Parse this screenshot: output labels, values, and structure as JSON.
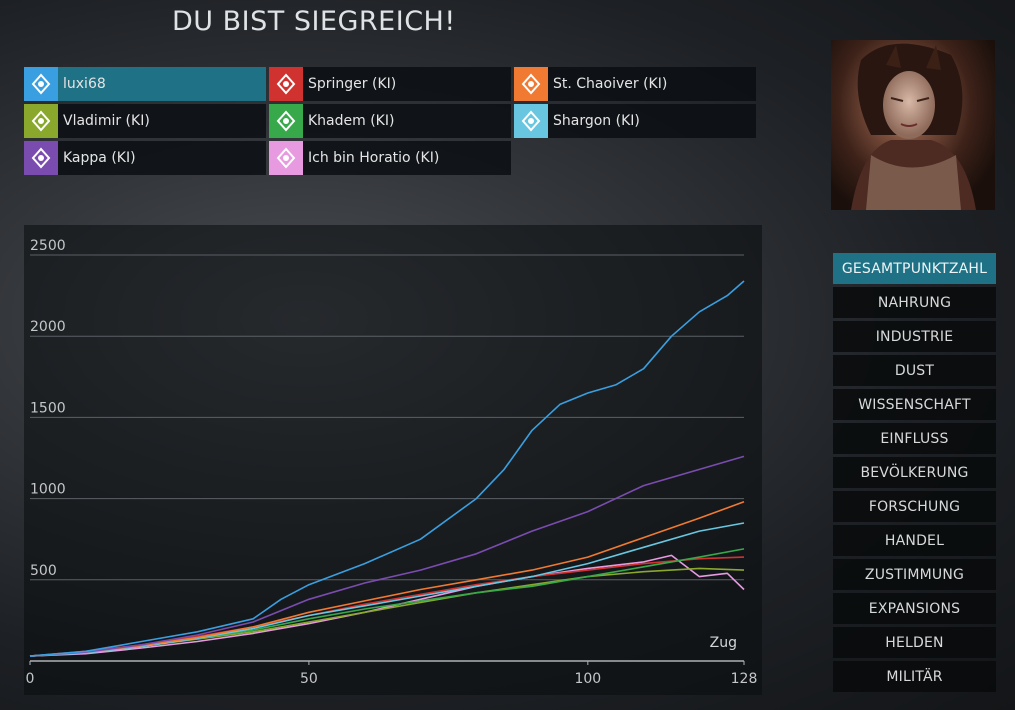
{
  "header": {
    "title": "DU BIST SIEGREICH!"
  },
  "empires": [
    {
      "name": "luxi68",
      "color": "#3a9fe0",
      "icon": "faction-icon",
      "active": true
    },
    {
      "name": "Springer (KI)",
      "color": "#d0332f",
      "icon": "faction-icon",
      "active": false
    },
    {
      "name": "St. Chaoiver (KI)",
      "color": "#f07a32",
      "icon": "faction-icon",
      "active": false
    },
    {
      "name": "Vladimir (KI)",
      "color": "#89a82c",
      "icon": "faction-icon",
      "active": false
    },
    {
      "name": "Khadem (KI)",
      "color": "#37a94b",
      "icon": "faction-icon",
      "active": false
    },
    {
      "name": "Shargon (KI)",
      "color": "#69c6e0",
      "icon": "faction-icon",
      "active": false
    },
    {
      "name": "Kappa (KI)",
      "color": "#7b4cb0",
      "icon": "faction-icon",
      "active": false
    },
    {
      "name": "Ich bin Horatio (KI)",
      "color": "#e79ae0",
      "icon": "faction-icon",
      "active": false
    }
  ],
  "portrait": {
    "icon": "leader-portrait"
  },
  "menu": {
    "items": [
      "GESAMTPUNKTZAHL",
      "NAHRUNG",
      "INDUSTRIE",
      "DUST",
      "WISSENSCHAFT",
      "EINFLUSS",
      "BEVÖLKERUNG",
      "FORSCHUNG",
      "HANDEL",
      "ZUSTIMMUNG",
      "EXPANSIONS",
      "HELDEN",
      "MILITÄR"
    ],
    "active_index": 0
  },
  "chart_data": {
    "type": "line",
    "xlabel": "Zug",
    "ylabel": "",
    "xlim": [
      0,
      128
    ],
    "ylim": [
      0,
      2500
    ],
    "x_ticks": [
      0,
      50,
      100,
      128
    ],
    "y_ticks": [
      500,
      1000,
      1500,
      2000,
      2500
    ],
    "grid": "horizontal",
    "series": [
      {
        "name": "luxi68",
        "color": "#3a9fe0",
        "x": [
          0,
          10,
          20,
          30,
          40,
          45,
          50,
          60,
          70,
          80,
          85,
          90,
          95,
          100,
          105,
          110,
          115,
          120,
          125,
          128
        ],
        "y": [
          30,
          60,
          120,
          180,
          260,
          380,
          470,
          600,
          750,
          1000,
          1180,
          1420,
          1580,
          1650,
          1700,
          1800,
          2000,
          2150,
          2250,
          2340
        ]
      },
      {
        "name": "Kappa (KI)",
        "color": "#7b4cb0",
        "x": [
          0,
          10,
          20,
          30,
          40,
          50,
          60,
          70,
          80,
          90,
          100,
          110,
          120,
          128
        ],
        "y": [
          30,
          55,
          100,
          160,
          240,
          380,
          480,
          560,
          660,
          800,
          920,
          1080,
          1180,
          1260
        ]
      },
      {
        "name": "St. Chaoiver (KI)",
        "color": "#f07a32",
        "x": [
          0,
          10,
          20,
          30,
          40,
          50,
          60,
          70,
          80,
          90,
          100,
          110,
          120,
          128
        ],
        "y": [
          30,
          55,
          95,
          145,
          210,
          300,
          370,
          440,
          500,
          560,
          640,
          760,
          880,
          980
        ]
      },
      {
        "name": "Shargon (KI)",
        "color": "#69c6e0",
        "x": [
          0,
          10,
          20,
          30,
          40,
          50,
          60,
          70,
          80,
          90,
          100,
          110,
          120,
          128
        ],
        "y": [
          30,
          50,
          90,
          140,
          200,
          280,
          340,
          400,
          460,
          520,
          600,
          700,
          800,
          850
        ]
      },
      {
        "name": "Khadem (KI)",
        "color": "#37a94b",
        "x": [
          0,
          10,
          20,
          30,
          40,
          50,
          60,
          70,
          80,
          90,
          100,
          110,
          120,
          128
        ],
        "y": [
          30,
          55,
          95,
          140,
          190,
          260,
          320,
          370,
          420,
          460,
          520,
          580,
          640,
          690
        ]
      },
      {
        "name": "Springer (KI)",
        "color": "#d0332f",
        "x": [
          0,
          10,
          20,
          30,
          40,
          50,
          60,
          70,
          80,
          90,
          100,
          110,
          120,
          128
        ],
        "y": [
          30,
          60,
          100,
          150,
          210,
          280,
          350,
          410,
          470,
          520,
          560,
          600,
          630,
          640
        ]
      },
      {
        "name": "Vladimir (KI)",
        "color": "#89a82c",
        "x": [
          0,
          10,
          20,
          30,
          40,
          50,
          60,
          70,
          80,
          90,
          100,
          110,
          120,
          128
        ],
        "y": [
          30,
          55,
          90,
          135,
          180,
          240,
          300,
          360,
          420,
          470,
          520,
          550,
          570,
          560
        ]
      },
      {
        "name": "Ich bin Horatio (KI)",
        "color": "#e79ae0",
        "x": [
          0,
          10,
          20,
          30,
          40,
          50,
          60,
          70,
          80,
          90,
          100,
          110,
          115,
          120,
          125,
          128
        ],
        "y": [
          30,
          45,
          80,
          120,
          170,
          230,
          300,
          380,
          460,
          520,
          570,
          610,
          650,
          520,
          540,
          440
        ]
      }
    ]
  }
}
